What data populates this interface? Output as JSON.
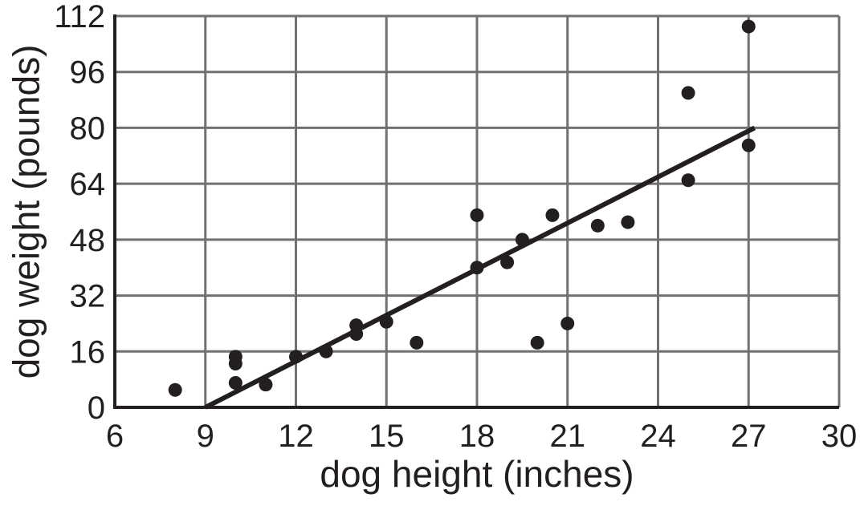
{
  "chart_data": {
    "type": "scatter",
    "title": "",
    "xlabel": "dog height (inches)",
    "ylabel": "dog weight (pounds)",
    "xlim": [
      6,
      30
    ],
    "ylim": [
      0,
      112
    ],
    "x_ticks": [
      6,
      9,
      12,
      15,
      18,
      21,
      24,
      27,
      30
    ],
    "y_ticks": [
      0,
      16,
      32,
      48,
      64,
      80,
      96,
      112
    ],
    "grid": true,
    "legend_position": "none",
    "points": [
      [
        8,
        5
      ],
      [
        10,
        7
      ],
      [
        10,
        12.5
      ],
      [
        10,
        14.5
      ],
      [
        11,
        6.5
      ],
      [
        12,
        14.5
      ],
      [
        13,
        16
      ],
      [
        14,
        21
      ],
      [
        14,
        23.5
      ],
      [
        15,
        24.5
      ],
      [
        16,
        18.5
      ],
      [
        18,
        40
      ],
      [
        18,
        55
      ],
      [
        19,
        41.5
      ],
      [
        19.5,
        48
      ],
      [
        20,
        18.5
      ],
      [
        20.5,
        55
      ],
      [
        21,
        24
      ],
      [
        22,
        52
      ],
      [
        23,
        53
      ],
      [
        25,
        65
      ],
      [
        25,
        90
      ],
      [
        27,
        75
      ],
      [
        27,
        109
      ]
    ],
    "trend_line": {
      "x1": 9,
      "y1": 0,
      "x2": 27.2,
      "y2": 80
    },
    "colors": {
      "point": "#231f20",
      "trend": "#231f20",
      "grid": "#6f7073",
      "axis": "#231f20",
      "text": "#231f20"
    }
  }
}
